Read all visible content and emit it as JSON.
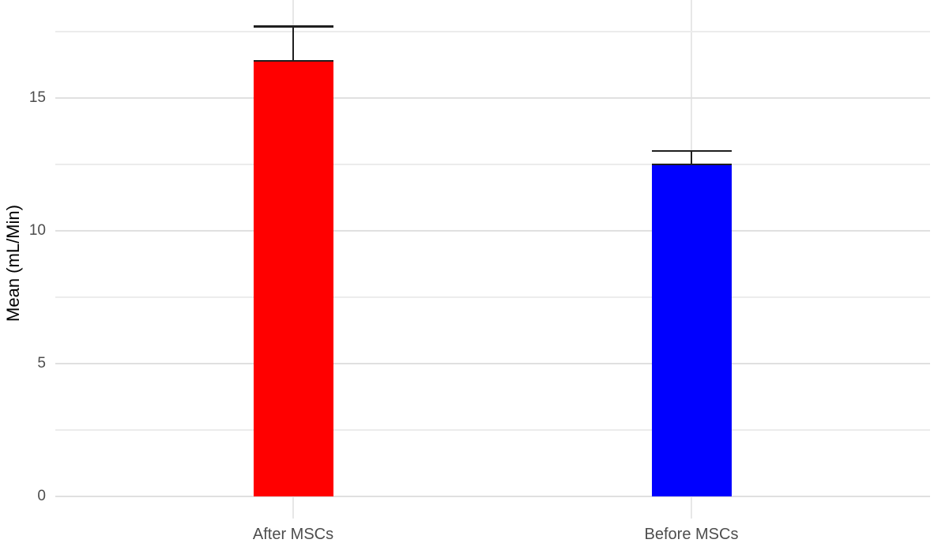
{
  "chart_data": {
    "type": "bar",
    "title": "",
    "xlabel": "",
    "ylabel": "Mean (mL/Min)",
    "categories": [
      "After MSCs",
      "Before MSCs"
    ],
    "series": [
      {
        "name": "Mean",
        "values": [
          16.4,
          12.5
        ]
      }
    ],
    "error_upper": [
      17.7,
      13.0
    ],
    "bar_colors": [
      "#ff0000",
      "#0000ff"
    ],
    "ylim": [
      -0.9,
      18.7
    ],
    "yticks": [
      0,
      5,
      10,
      15
    ],
    "yticks_minor": [
      2.5,
      7.5,
      12.5,
      17.5
    ],
    "grid": "horizontal major and minor lines, vertical line at each category",
    "legend_position": "none",
    "error_bar_style": "capped, drawn from mean up to mean + error"
  },
  "colors": {
    "background": "#ffffff",
    "grid_major": "#e0e0e0",
    "grid_minor": "#ececec",
    "grid_vertical": "#e7e7e7",
    "axis_text": "#4d4d4d",
    "axis_title": "#000000",
    "error_bar": "#1f1f1f"
  }
}
